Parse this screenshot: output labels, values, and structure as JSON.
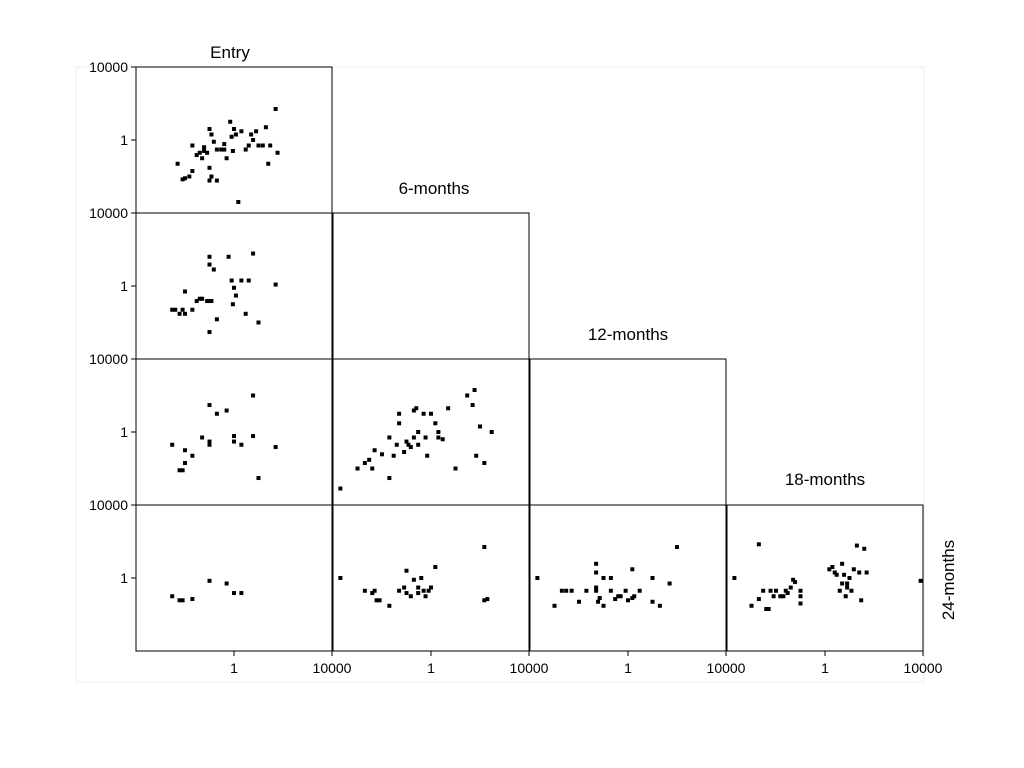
{
  "chart_data": {
    "type": "scatter",
    "layout": "scatter-plot-matrix (lower triangle)",
    "scale": "log10",
    "variables": [
      "Entry",
      "6-months",
      "12-months",
      "18-months",
      "24-months"
    ],
    "axis_range": [
      0.0001,
      10000
    ],
    "tick_values": [
      1,
      10000
    ],
    "tick_labels": [
      "1",
      "10000"
    ],
    "grid": false,
    "legend": "none",
    "point_color": "#000000",
    "panels": [
      {
        "x_var": "Entry",
        "y_var": "6-months",
        "points": [
          [
            0.01,
            0.5
          ],
          [
            0.004,
            0.05
          ],
          [
            0.006,
            0.03
          ],
          [
            0.008,
            0.05
          ],
          [
            0.01,
            0.03
          ],
          [
            0.02,
            0.05
          ],
          [
            0.03,
            0.15
          ],
          [
            0.04,
            0.2
          ],
          [
            0.05,
            0.2
          ],
          [
            0.08,
            0.15
          ],
          [
            0.1,
            0.15
          ],
          [
            0.1,
            0.003
          ],
          [
            0.12,
            0.15
          ],
          [
            0.1,
            40
          ],
          [
            0.1,
            15
          ],
          [
            0.15,
            8
          ],
          [
            0.2,
            0.015
          ],
          [
            0.6,
            40
          ],
          [
            0.8,
            2
          ],
          [
            0.9,
            0.1
          ],
          [
            1,
            0.8
          ],
          [
            1.2,
            0.3
          ],
          [
            2,
            2
          ],
          [
            3,
            0.03
          ],
          [
            4,
            2
          ],
          [
            6,
            60
          ],
          [
            10,
            0.01
          ],
          [
            50,
            1.2
          ],
          [
            0.003,
            0.05
          ]
        ]
      },
      {
        "x_var": "Entry",
        "y_var": "12-months",
        "points": [
          [
            0.003,
            0.2
          ],
          [
            0.006,
            0.008
          ],
          [
            0.008,
            0.008
          ],
          [
            0.01,
            0.02
          ],
          [
            0.01,
            0.1
          ],
          [
            0.02,
            0.05
          ],
          [
            0.05,
            0.5
          ],
          [
            0.1,
            0.3
          ],
          [
            0.1,
            0.2
          ],
          [
            0.1,
            30
          ],
          [
            0.2,
            10
          ],
          [
            0.5,
            15
          ],
          [
            1,
            0.3
          ],
          [
            1,
            0.6
          ],
          [
            2,
            0.2
          ],
          [
            6,
            100
          ],
          [
            6,
            0.6
          ],
          [
            10,
            0.003
          ],
          [
            50,
            0.15
          ]
        ]
      },
      {
        "x_var": "Entry",
        "y_var": "24-months",
        "points": [
          [
            0.003,
            0.1
          ],
          [
            0.006,
            0.06
          ],
          [
            0.008,
            0.06
          ],
          [
            0.02,
            0.07
          ],
          [
            0.1,
            0.7
          ],
          [
            0.5,
            0.5
          ],
          [
            1,
            0.15
          ],
          [
            2,
            0.15
          ]
        ]
      },
      {
        "x_var": "6-months",
        "y_var": "12-months",
        "points": [
          [
            0.0002,
            0.0008
          ],
          [
            0.001,
            0.01
          ],
          [
            0.002,
            0.02
          ],
          [
            0.003,
            0.03
          ],
          [
            0.004,
            0.01
          ],
          [
            0.005,
            0.1
          ],
          [
            0.01,
            0.06
          ],
          [
            0.02,
            0.003
          ],
          [
            0.02,
            0.5
          ],
          [
            0.03,
            0.05
          ],
          [
            0.04,
            0.2
          ],
          [
            0.05,
            10
          ],
          [
            0.05,
            3
          ],
          [
            0.08,
            0.08
          ],
          [
            0.1,
            0.3
          ],
          [
            0.12,
            0.2
          ],
          [
            0.15,
            0.15
          ],
          [
            0.2,
            0.5
          ],
          [
            0.2,
            15
          ],
          [
            0.25,
            20
          ],
          [
            0.3,
            1
          ],
          [
            0.3,
            0.2
          ],
          [
            0.5,
            10
          ],
          [
            0.6,
            0.5
          ],
          [
            0.7,
            0.05
          ],
          [
            1,
            10
          ],
          [
            1.5,
            3
          ],
          [
            2,
            0.5
          ],
          [
            2,
            1
          ],
          [
            3,
            0.4
          ],
          [
            5,
            20
          ],
          [
            10,
            0.01
          ],
          [
            30,
            100
          ],
          [
            50,
            30
          ],
          [
            60,
            200
          ],
          [
            70,
            0.05
          ],
          [
            100,
            2
          ],
          [
            150,
            0.02
          ],
          [
            300,
            1
          ]
        ]
      },
      {
        "x_var": "6-months",
        "y_var": "24-months",
        "points": [
          [
            0.0002,
            1
          ],
          [
            0.002,
            0.2
          ],
          [
            0.004,
            0.15
          ],
          [
            0.005,
            0.2
          ],
          [
            0.006,
            0.06
          ],
          [
            0.008,
            0.06
          ],
          [
            0.02,
            0.03
          ],
          [
            0.05,
            0.2
          ],
          [
            0.08,
            0.3
          ],
          [
            0.1,
            2.5
          ],
          [
            0.1,
            0.15
          ],
          [
            0.15,
            0.1
          ],
          [
            0.2,
            0.8
          ],
          [
            0.3,
            0.3
          ],
          [
            0.3,
            0.15
          ],
          [
            0.4,
            1
          ],
          [
            0.5,
            0.2
          ],
          [
            0.6,
            0.1
          ],
          [
            0.8,
            0.2
          ],
          [
            1,
            0.3
          ],
          [
            1.5,
            4
          ],
          [
            150,
            0.06
          ],
          [
            200,
            0.07
          ],
          [
            150,
            50
          ]
        ]
      },
      {
        "x_var": "12-months",
        "y_var": "24-months",
        "points": [
          [
            0.0002,
            1
          ],
          [
            0.001,
            0.03
          ],
          [
            0.002,
            0.2
          ],
          [
            0.003,
            0.2
          ],
          [
            0.005,
            0.2
          ],
          [
            0.01,
            0.05
          ],
          [
            0.02,
            0.2
          ],
          [
            0.05,
            0.2
          ],
          [
            0.05,
            6
          ],
          [
            0.05,
            2
          ],
          [
            0.05,
            0.3
          ],
          [
            0.06,
            0.05
          ],
          [
            0.07,
            0.08
          ],
          [
            0.1,
            0.03
          ],
          [
            0.1,
            1
          ],
          [
            0.2,
            1
          ],
          [
            0.2,
            0.2
          ],
          [
            0.3,
            0.07
          ],
          [
            0.4,
            0.1
          ],
          [
            0.5,
            0.1
          ],
          [
            0.8,
            0.2
          ],
          [
            1,
            0.06
          ],
          [
            1.5,
            3
          ],
          [
            1.5,
            0.08
          ],
          [
            1.8,
            0.1
          ],
          [
            3,
            0.2
          ],
          [
            10,
            1
          ],
          [
            10,
            0.05
          ],
          [
            20,
            0.03
          ],
          [
            50,
            0.5
          ],
          [
            100,
            50
          ]
        ]
      },
      {
        "x_var": "18-months",
        "y_var": "24-months",
        "points": [
          [
            0.0002,
            1
          ],
          [
            0.001,
            0.03
          ],
          [
            0.002,
            0.07
          ],
          [
            0.003,
            0.2
          ],
          [
            0.004,
            0.02
          ],
          [
            0.005,
            0.02
          ],
          [
            0.006,
            0.2
          ],
          [
            0.008,
            0.1
          ],
          [
            0.01,
            0.2
          ],
          [
            0.015,
            0.1
          ],
          [
            0.02,
            0.1
          ],
          [
            0.025,
            0.2
          ],
          [
            0.03,
            0.15
          ],
          [
            0.04,
            0.3
          ],
          [
            0.05,
            0.8
          ],
          [
            0.06,
            0.6
          ],
          [
            0.1,
            0.04
          ],
          [
            0.1,
            0.1
          ],
          [
            0.1,
            0.2
          ],
          [
            1.5,
            3
          ],
          [
            2,
            4
          ],
          [
            2.5,
            2
          ],
          [
            3,
            1.5
          ],
          [
            4,
            0.2
          ],
          [
            5,
            6
          ],
          [
            5,
            0.5
          ],
          [
            6,
            1.5
          ],
          [
            7,
            0.1
          ],
          [
            8,
            0.3
          ],
          [
            8,
            0.5
          ],
          [
            10,
            1
          ],
          [
            12,
            0.2
          ],
          [
            15,
            3
          ],
          [
            20,
            60
          ],
          [
            25,
            2
          ],
          [
            30,
            0.06
          ],
          [
            40,
            40
          ],
          [
            50,
            2
          ],
          [
            0.002,
            70
          ],
          [
            8000,
            0.7
          ]
        ]
      },
      {
        "x_var": "6-months",
        "y_var": "Entry",
        "points": []
      }
    ],
    "entry_self_points": [
      [
        0.02,
        0.5
      ],
      [
        0.005,
        0.05
      ],
      [
        0.008,
        0.007
      ],
      [
        0.01,
        0.008
      ],
      [
        0.015,
        0.01
      ],
      [
        0.02,
        0.02
      ],
      [
        0.03,
        0.15
      ],
      [
        0.04,
        0.2
      ],
      [
        0.05,
        0.1
      ],
      [
        0.06,
        0.4
      ],
      [
        0.06,
        0.25
      ],
      [
        0.08,
        0.2
      ],
      [
        0.1,
        0.006
      ],
      [
        0.1,
        0.03
      ],
      [
        0.12,
        0.01
      ],
      [
        0.1,
        4
      ],
      [
        0.12,
        2
      ],
      [
        0.15,
        0.8
      ],
      [
        0.2,
        0.3
      ],
      [
        0.2,
        0.006
      ],
      [
        0.3,
        0.3
      ],
      [
        0.4,
        0.6
      ],
      [
        0.4,
        0.3
      ],
      [
        0.5,
        0.1
      ],
      [
        0.7,
        10
      ],
      [
        0.8,
        1.5
      ],
      [
        0.9,
        0.25
      ],
      [
        1,
        4
      ],
      [
        1.2,
        2
      ],
      [
        1.5,
        0.0004
      ],
      [
        2,
        3
      ],
      [
        3,
        0.3
      ],
      [
        4,
        0.5
      ],
      [
        5,
        2
      ],
      [
        6,
        1
      ],
      [
        8,
        3
      ],
      [
        10,
        0.5
      ],
      [
        15,
        0.5
      ],
      [
        20,
        5
      ],
      [
        25,
        0.05
      ],
      [
        30,
        0.5
      ],
      [
        50,
        50
      ],
      [
        60,
        0.2
      ]
    ]
  }
}
